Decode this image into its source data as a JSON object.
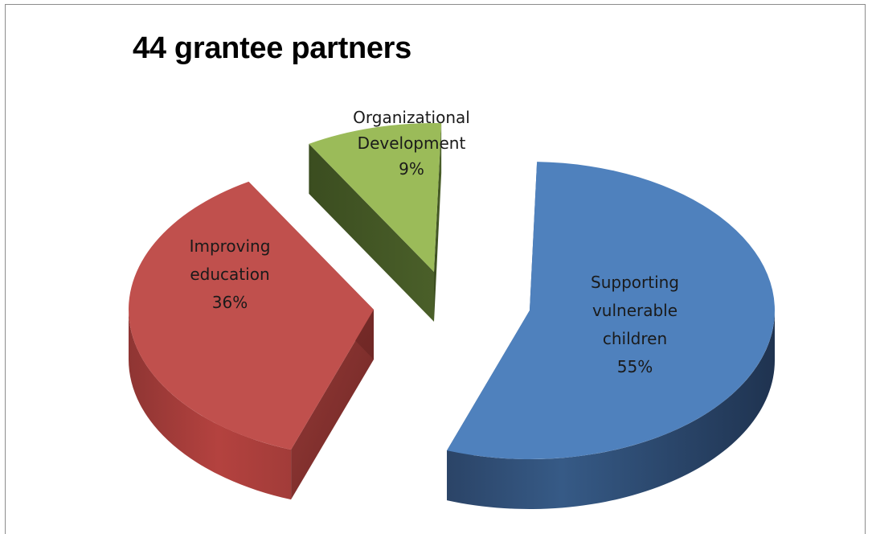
{
  "chart_data": {
    "type": "pie",
    "title": "44 grantee partners",
    "exploded": true,
    "three_d": true,
    "slices": [
      {
        "label": "Supporting vulnerable children",
        "label_lines": [
          "Supporting",
          "vulnerable",
          "children"
        ],
        "value": 55,
        "value_label": "55%",
        "color": "#4f81bd"
      },
      {
        "label": "Improving education",
        "label_lines": [
          "Improving",
          "education"
        ],
        "value": 36,
        "value_label": "36%",
        "color": "#c0504d"
      },
      {
        "label": "Organizational Development",
        "label_lines": [
          "Organizational",
          "Development"
        ],
        "value": 9,
        "value_label": "9%",
        "color": "#9bbb59"
      }
    ]
  }
}
